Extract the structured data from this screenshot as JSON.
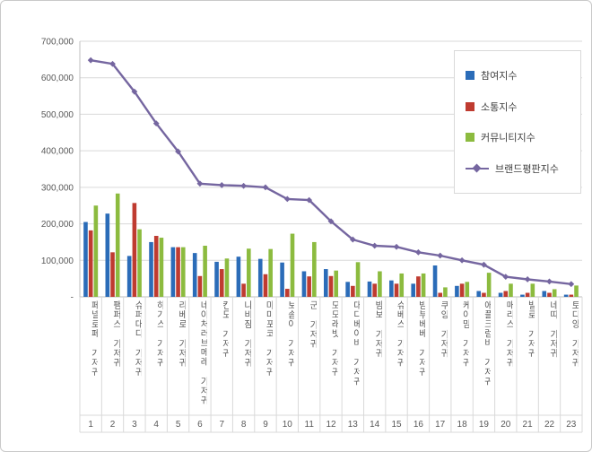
{
  "chart_data": {
    "type": "bar+line",
    "title": "",
    "xlabel": "",
    "ylabel": "",
    "ylim": [
      0,
      700000
    ],
    "ytick_step": 100000,
    "grid": true,
    "legend_position": "top-right",
    "ytick_labels": [
      "-",
      "100,000",
      "200,000",
      "300,000",
      "400,000",
      "500,000",
      "600,000",
      "700,000"
    ],
    "categories": [
      "페넬로페 기저귀",
      "팸퍼스 기저귀",
      "슈퍼대디 기저귀",
      "하기스 기저귀",
      "리베로 기저귀",
      "네이처러브메레 기저귀",
      "킨도 기저귀",
      "나비잠 기저귀",
      "마미포코 기저귀",
      "보솜이 기저귀",
      "군 기저귀",
      "모모래빗 기저귀",
      "대디베이비 기저귀",
      "밤보 기저귀",
      "슈베스 기저귀",
      "밤부베베 기저귀",
      "쿠잉 기저귀",
      "케이맘 기저귀",
      "애플크럼비 기저귀",
      "매리스 기저귀",
      "빌로 기저귀",
      "네띠 기저귀",
      "토디앙 기저귀"
    ],
    "rank_labels": [
      "1",
      "2",
      "3",
      "4",
      "5",
      "6",
      "7",
      "8",
      "9",
      "10",
      "11",
      "12",
      "13",
      "14",
      "15",
      "16",
      "17",
      "18",
      "19",
      "20",
      "21",
      "22",
      "23"
    ],
    "series": [
      {
        "name": "참여지수",
        "type": "bar",
        "color": "#2B6CB8",
        "values": [
          205000,
          228000,
          112000,
          150000,
          136000,
          120000,
          96000,
          110000,
          104000,
          94000,
          70000,
          76000,
          41000,
          42000,
          45000,
          36000,
          86000,
          30000,
          16000,
          11000,
          6000,
          16000,
          6000
        ]
      },
      {
        "name": "소통지수",
        "type": "bar",
        "color": "#BF3B30",
        "values": [
          182000,
          122000,
          257000,
          167000,
          136000,
          57000,
          76000,
          36000,
          62000,
          22000,
          56000,
          57000,
          30000,
          36000,
          36000,
          56000,
          11000,
          36000,
          11000,
          16000,
          11000,
          11000,
          6000
        ]
      },
      {
        "name": "커뮤니티지수",
        "type": "bar",
        "color": "#8CBB3F",
        "values": [
          250000,
          283000,
          185000,
          162000,
          136000,
          140000,
          105000,
          132000,
          131000,
          173000,
          150000,
          72000,
          95000,
          70000,
          64000,
          64000,
          26000,
          41000,
          66000,
          36000,
          36000,
          21000,
          31000
        ]
      },
      {
        "name": "브랜드평판지수",
        "type": "line",
        "color": "#7566A0",
        "values": [
          648000,
          638000,
          562000,
          475000,
          398000,
          310000,
          306000,
          304000,
          300000,
          268000,
          265000,
          207000,
          157000,
          140000,
          137000,
          122000,
          113000,
          100000,
          88000,
          55000,
          48000,
          42000,
          35000
        ]
      }
    ]
  }
}
